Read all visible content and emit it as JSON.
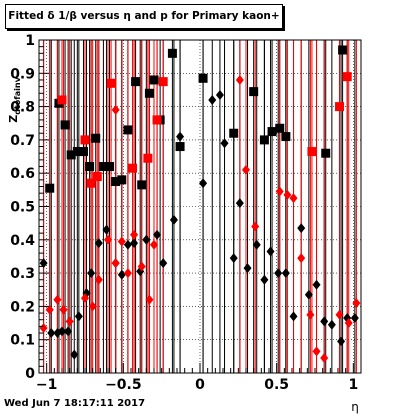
{
  "title": "Fitted δ 1/β versus η and p for Primary kaon+",
  "footer_text": "Wed Jun  7 18:17:11 2017",
  "chart_data": {
    "type": "scatter",
    "title": "Fitted δ 1/β versus η and p for Primary kaon+",
    "xlabel": "η",
    "ylabel": "Z_{dtofainv}",
    "xlim": [
      -1.05,
      1.05
    ],
    "ylim": [
      0,
      1
    ],
    "xticks": [
      -1,
      -0.5,
      0,
      0.5,
      1
    ],
    "xtick_labels": [
      "−1",
      "−0.5",
      "0",
      "0.5",
      "1"
    ],
    "yticks": [
      0,
      0.1,
      0.2,
      0.3,
      0.4,
      0.5,
      0.6,
      0.7,
      0.8,
      0.9,
      1
    ],
    "ytick_labels": [
      "0",
      "0.1",
      "0.2",
      "0.3",
      "0.4",
      "0.5",
      "0.6",
      "0.7",
      "0.8",
      "0.9",
      "1"
    ],
    "grid": "dotted vertical and horizontal",
    "colors": {
      "black_series": "#000000",
      "red_series": "#ff0000"
    },
    "series": [
      {
        "color": "#000000",
        "marker": "diamond",
        "points": [
          [
            -1.02,
            0.33
          ],
          [
            -0.97,
            0.12
          ],
          [
            -0.93,
            0.12
          ],
          [
            -0.9,
            0.125
          ],
          [
            -0.86,
            0.125
          ],
          [
            -0.82,
            0.055
          ],
          [
            -0.79,
            0.17
          ],
          [
            -0.74,
            0.24
          ],
          [
            -0.71,
            0.3
          ],
          [
            -0.66,
            0.39
          ],
          [
            -0.61,
            0.43
          ],
          [
            -0.55,
            0.33
          ],
          [
            -0.51,
            0.295
          ],
          [
            -0.47,
            0.385
          ],
          [
            -0.43,
            0.39
          ],
          [
            -0.39,
            0.305
          ],
          [
            -0.35,
            0.4
          ],
          [
            -0.28,
            0.415
          ],
          [
            -0.24,
            0.33
          ],
          [
            -0.17,
            0.46
          ],
          [
            -0.13,
            0.71
          ],
          [
            0.02,
            0.57
          ],
          [
            0.08,
            0.82
          ],
          [
            0.13,
            0.835
          ],
          [
            0.16,
            0.69
          ],
          [
            0.22,
            0.345
          ],
          [
            0.26,
            0.51
          ],
          [
            0.31,
            0.315
          ],
          [
            0.37,
            0.385
          ],
          [
            0.42,
            0.28
          ],
          [
            0.46,
            0.365
          ],
          [
            0.51,
            0.3
          ],
          [
            0.56,
            0.3
          ],
          [
            0.61,
            0.17
          ],
          [
            0.66,
            0.435
          ],
          [
            0.71,
            0.235
          ],
          [
            0.76,
            0.265
          ],
          [
            0.81,
            0.155
          ],
          [
            0.86,
            0.145
          ],
          [
            0.92,
            0.095
          ],
          [
            0.96,
            0.165
          ],
          [
            1.01,
            0.165
          ]
        ]
      },
      {
        "color": "#000000",
        "marker": "square",
        "points": [
          [
            -0.98,
            0.555
          ],
          [
            -0.92,
            0.81
          ],
          [
            -0.88,
            0.745
          ],
          [
            -0.84,
            0.655
          ],
          [
            -0.8,
            0.665
          ],
          [
            -0.76,
            0.665
          ],
          [
            -0.72,
            0.62
          ],
          [
            -0.68,
            0.705
          ],
          [
            -0.63,
            0.62
          ],
          [
            -0.59,
            0.62
          ],
          [
            -0.55,
            0.575
          ],
          [
            -0.51,
            0.58
          ],
          [
            -0.47,
            0.73
          ],
          [
            -0.42,
            0.875
          ],
          [
            -0.38,
            0.565
          ],
          [
            -0.33,
            0.84
          ],
          [
            -0.3,
            0.88
          ],
          [
            -0.26,
            0.76
          ],
          [
            -0.18,
            0.96
          ],
          [
            -0.13,
            0.68
          ],
          [
            0.02,
            0.885
          ],
          [
            0.22,
            0.72
          ],
          [
            0.35,
            0.845
          ],
          [
            0.42,
            0.7
          ],
          [
            0.47,
            0.725
          ],
          [
            0.52,
            0.735
          ],
          [
            0.56,
            0.71
          ],
          [
            0.82,
            0.66
          ],
          [
            0.93,
            0.97
          ]
        ]
      },
      {
        "color": "#ff0000",
        "marker": "diamond",
        "points": [
          [
            -1.02,
            0.135
          ],
          [
            -0.98,
            0.19
          ],
          [
            -0.93,
            0.22
          ],
          [
            -0.89,
            0.19
          ],
          [
            -0.85,
            0.155
          ],
          [
            -0.75,
            0.225
          ],
          [
            -0.7,
            0.2
          ],
          [
            -0.66,
            0.28
          ],
          [
            -0.6,
            0.4
          ],
          [
            -0.55,
            0.33
          ],
          [
            -0.51,
            0.395
          ],
          [
            -0.47,
            0.3
          ],
          [
            -0.43,
            0.415
          ],
          [
            -0.38,
            0.32
          ],
          [
            -0.33,
            0.22
          ],
          [
            -0.3,
            0.385
          ],
          [
            -0.55,
            0.79
          ],
          [
            0.26,
            0.88
          ],
          [
            0.3,
            0.61
          ],
          [
            0.36,
            0.44
          ],
          [
            0.52,
            0.545
          ],
          [
            0.57,
            0.535
          ],
          [
            0.61,
            0.525
          ],
          [
            0.66,
            0.345
          ],
          [
            0.72,
            0.175
          ],
          [
            0.76,
            0.065
          ],
          [
            0.81,
            0.045
          ],
          [
            0.91,
            0.175
          ],
          [
            0.97,
            0.15
          ],
          [
            1.02,
            0.21
          ]
        ]
      },
      {
        "color": "#ff0000",
        "marker": "square",
        "points": [
          [
            -0.9,
            0.82
          ],
          [
            -0.75,
            0.7
          ],
          [
            -0.71,
            0.57
          ],
          [
            -0.67,
            0.59
          ],
          [
            -0.58,
            0.87
          ],
          [
            -0.44,
            0.615
          ],
          [
            -0.34,
            0.645
          ],
          [
            -0.28,
            0.76
          ],
          [
            -0.24,
            0.875
          ],
          [
            0.73,
            0.665
          ],
          [
            0.91,
            0.8
          ],
          [
            0.96,
            0.89
          ]
        ]
      }
    ]
  }
}
